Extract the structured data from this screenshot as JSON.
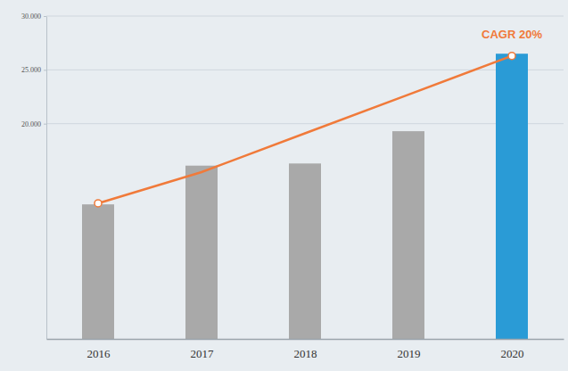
{
  "chart_data": {
    "type": "bar",
    "categories": [
      "2016",
      "2017",
      "2018",
      "2019",
      "2020"
    ],
    "series": [
      {
        "type": "bar",
        "colors": [
          "#a9a9a9",
          "#a9a9a9",
          "#a9a9a9",
          "#a9a9a9",
          "#2a9bd6"
        ],
        "values": [
          12500,
          16100,
          16300,
          19300,
          26500
        ]
      },
      {
        "type": "line",
        "color": "#f07a3a",
        "values": [
          12600,
          15500,
          19100,
          22700,
          26300
        ]
      }
    ],
    "ylim": [
      0,
      30000
    ],
    "yticks": [
      {
        "value": 20000,
        "label": "20.000"
      },
      {
        "value": 25000,
        "label": "25.000"
      },
      {
        "value": 30000,
        "label": "30.000"
      }
    ],
    "grid": true,
    "annotations": [
      {
        "text": "CAGR 20%"
      }
    ]
  }
}
